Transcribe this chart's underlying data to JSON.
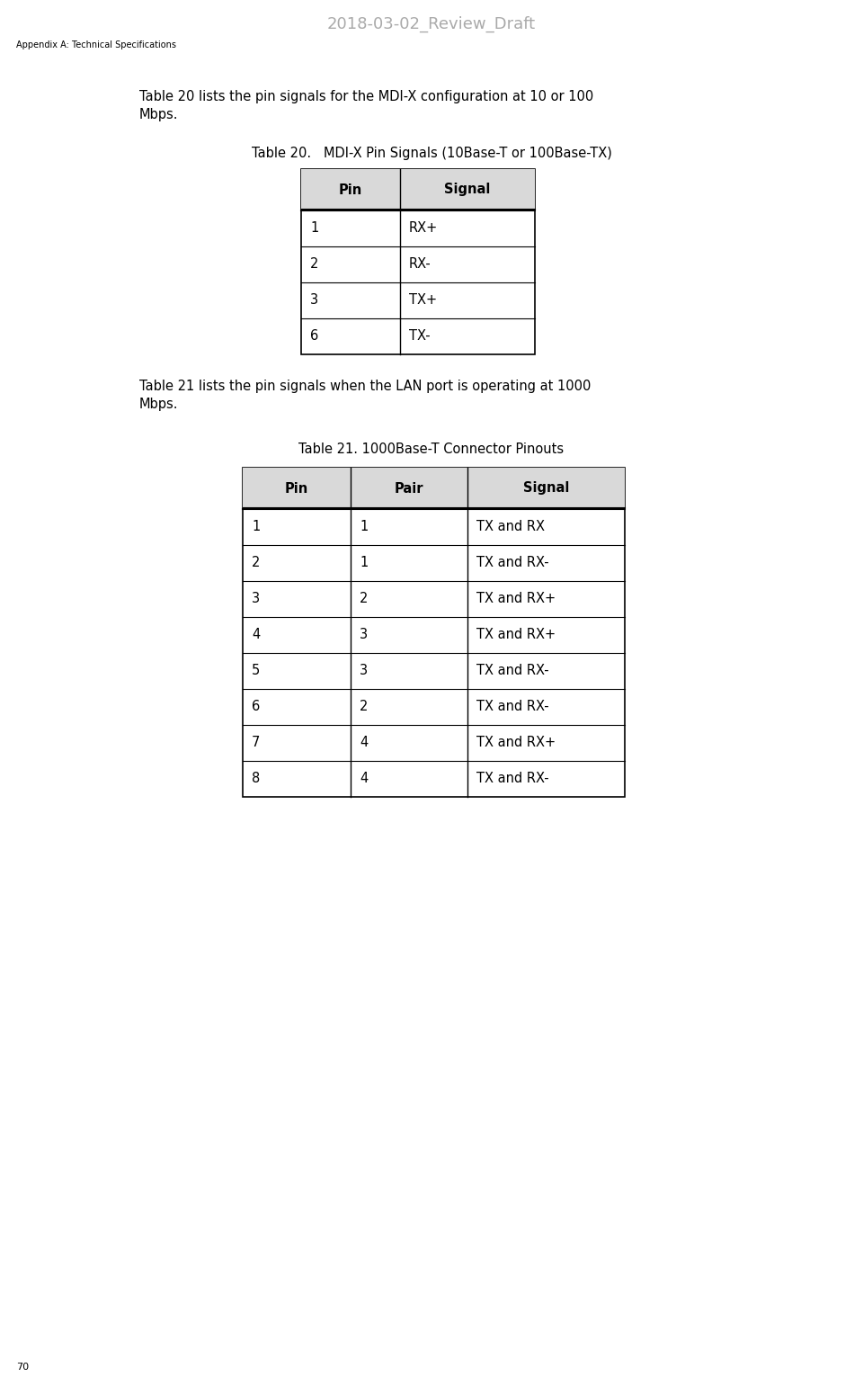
{
  "page_title": "2018-03-02_Review_Draft",
  "page_title_color": "#aaaaaa",
  "page_header": "Appendix A: Technical Specifications",
  "page_number": "70",
  "para1": "Table 20 lists the pin signals for the MDI-X configuration at 10 or 100\nMbps.",
  "table20_title": "Table 20.   MDI-X Pin Signals (10Base-T or 100Base-TX)",
  "table20_headers": [
    "Pin",
    "Signal"
  ],
  "table20_rows": [
    [
      "1",
      "RX+"
    ],
    [
      "2",
      "RX-"
    ],
    [
      "3",
      "TX+"
    ],
    [
      "6",
      "TX-"
    ]
  ],
  "para2": "Table 21 lists the pin signals when the LAN port is operating at 1000\nMbps.",
  "table21_title": "Table 21. 1000Base-T Connector Pinouts",
  "table21_headers": [
    "Pin",
    "Pair",
    "Signal"
  ],
  "table21_rows": [
    [
      "1",
      "1",
      "TX and RX"
    ],
    [
      "2",
      "1",
      "TX and RX-"
    ],
    [
      "3",
      "2",
      "TX and RX+"
    ],
    [
      "4",
      "3",
      "TX and RX+"
    ],
    [
      "5",
      "3",
      "TX and RX-"
    ],
    [
      "6",
      "2",
      "TX and RX-"
    ],
    [
      "7",
      "4",
      "TX and RX+"
    ],
    [
      "8",
      "4",
      "TX and RX-"
    ]
  ],
  "bg_color": "#ffffff",
  "text_color": "#000000",
  "header_bg": "#d9d9d9",
  "table_line_color": "#000000",
  "font_size_page_title": 13,
  "font_size_header_label": 7,
  "font_size_para": 10.5,
  "font_size_table_title": 10.5,
  "font_size_table_header": 10.5,
  "font_size_table_body": 10.5,
  "font_size_page_num": 8
}
